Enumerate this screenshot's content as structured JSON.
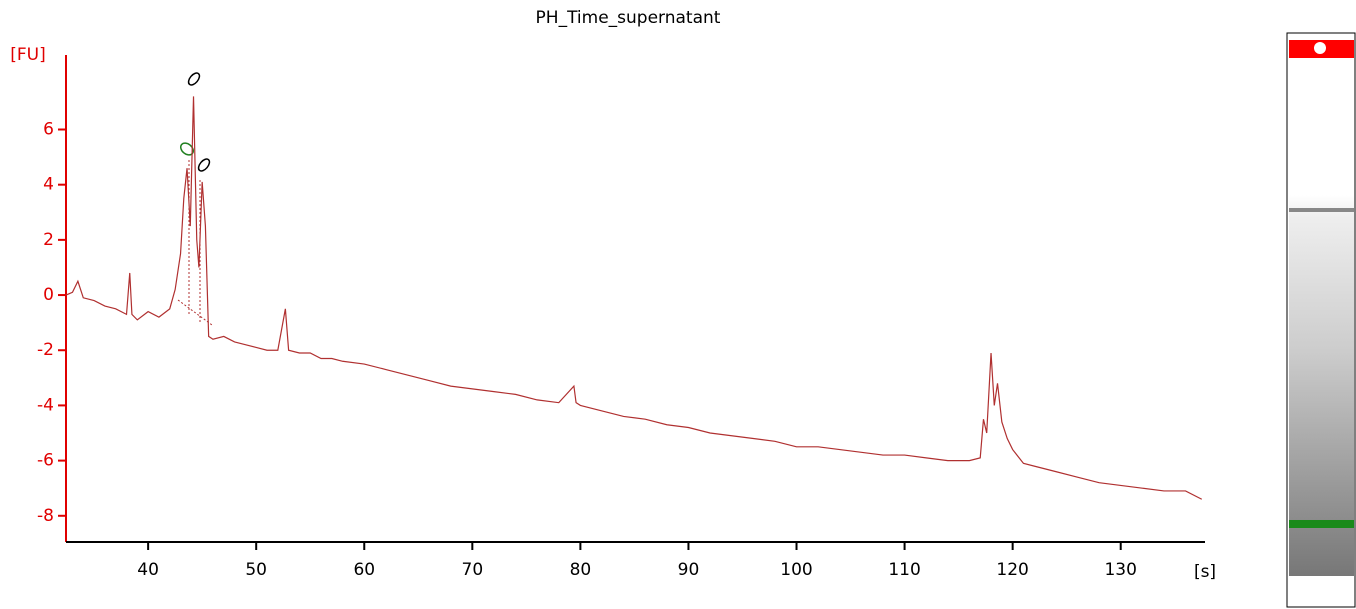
{
  "chart_data": {
    "type": "line",
    "title": "PH_Time_supernatant",
    "x_label": "[s]",
    "y_label": "[FU]",
    "x": [
      32.4,
      33,
      33.5,
      34,
      35,
      36,
      37,
      38,
      38.3,
      38.5,
      39,
      40,
      41,
      42,
      42.5,
      43,
      43.3,
      43.6,
      43.9,
      44.2,
      44.5,
      44.7,
      45,
      45.3,
      45.6,
      46,
      47,
      48,
      49,
      50,
      51,
      52,
      52.7,
      53,
      54,
      55,
      56,
      57,
      58,
      60,
      62,
      64,
      66,
      68,
      70,
      72,
      74,
      76,
      78,
      79.4,
      79.6,
      80,
      82,
      84,
      86,
      88,
      90,
      92,
      94,
      96,
      98,
      100,
      102,
      104,
      106,
      108,
      110,
      112,
      114,
      116,
      117,
      117.3,
      117.6,
      118,
      118.3,
      118.6,
      119,
      119.5,
      120,
      121,
      122,
      124,
      126,
      128,
      130,
      132,
      134,
      136,
      137.5
    ],
    "series": [
      {
        "name": "PH_Time_supernatant",
        "color": "#b03030",
        "values": [
          0,
          0.1,
          0.5,
          -0.1,
          -0.2,
          -0.4,
          -0.5,
          -0.7,
          0.8,
          -0.7,
          -0.9,
          -0.6,
          -0.8,
          -0.5,
          0.2,
          1.5,
          3.5,
          4.6,
          2.5,
          7.2,
          2.0,
          1.0,
          4.1,
          2.5,
          -1.5,
          -1.6,
          -1.5,
          -1.7,
          -1.8,
          -1.9,
          -2.0,
          -2.0,
          -0.5,
          -2.0,
          -2.1,
          -2.1,
          -2.3,
          -2.3,
          -2.4,
          -2.5,
          -2.7,
          -2.9,
          -3.1,
          -3.3,
          -3.4,
          -3.5,
          -3.6,
          -3.8,
          -3.9,
          -3.3,
          -3.9,
          -4.0,
          -4.2,
          -4.4,
          -4.5,
          -4.7,
          -4.8,
          -5.0,
          -5.1,
          -5.2,
          -5.3,
          -5.5,
          -5.5,
          -5.6,
          -5.7,
          -5.8,
          -5.8,
          -5.9,
          -6.0,
          -6.0,
          -5.9,
          -4.5,
          -5.0,
          -2.1,
          -4.0,
          -3.2,
          -4.6,
          -5.2,
          -5.6,
          -6.1,
          -6.2,
          -6.4,
          -6.6,
          -6.8,
          -6.9,
          -7.0,
          -7.1,
          -7.1,
          -7.4
        ]
      }
    ],
    "xlim": [
      32.4,
      137.8
    ],
    "ylim": [
      -8.95,
      8.7
    ],
    "xticks": [
      40,
      50,
      60,
      70,
      80,
      90,
      100,
      110,
      120,
      130
    ],
    "yticks": [
      6,
      4,
      2,
      0,
      -2,
      -4,
      -6,
      -8
    ],
    "y_axis_color": "#e00000",
    "x_axis_color": "#000000"
  }
}
